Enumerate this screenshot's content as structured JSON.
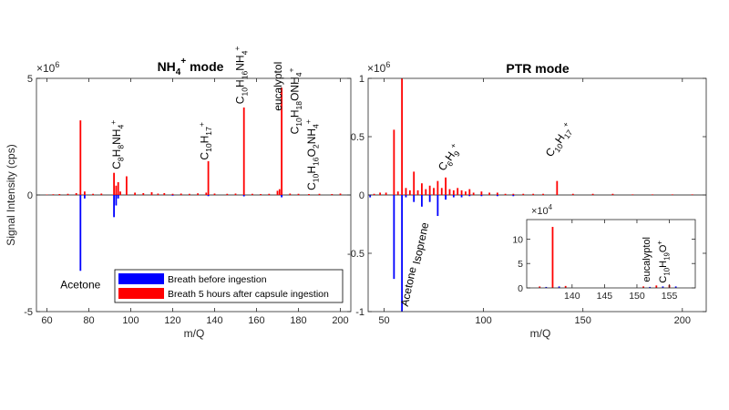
{
  "colors": {
    "before": "#0000ff",
    "after": "#ff0000",
    "axis": "#262626",
    "zero": "#000000"
  },
  "chart_data": [
    {
      "type": "bar",
      "title": "NH4+ mode",
      "xlabel": "m/Q",
      "ylabel": "Signal Intensity (cps)",
      "exponent": "×10^6",
      "xlim": [
        55,
        205
      ],
      "ylim": [
        -5,
        5
      ],
      "xticks": [
        60,
        80,
        100,
        120,
        140,
        160,
        180,
        200
      ],
      "yticks": [
        -5,
        0,
        5
      ],
      "legend": {
        "placement": "bottom-right",
        "entries": [
          "Breath before ingestion",
          "Breath 5 hours after capsule ingestion"
        ]
      },
      "series": [
        {
          "name": "Breath 5 hours after capsule ingestion",
          "x": [
            60,
            63,
            66,
            70,
            74,
            76,
            78,
            82,
            86,
            92,
            93,
            94,
            95,
            98,
            102,
            106,
            110,
            113,
            116,
            120,
            124,
            128,
            132,
            136,
            137,
            140,
            146,
            150,
            154,
            158,
            162,
            166,
            170,
            171,
            172,
            176,
            180,
            185,
            190,
            196,
            200
          ],
          "values": [
            0.02,
            0.03,
            0.04,
            0.05,
            0.08,
            3.2,
            0.15,
            0.05,
            0.06,
            0.95,
            0.4,
            0.55,
            0.15,
            0.8,
            0.1,
            0.08,
            0.12,
            0.06,
            0.08,
            0.05,
            0.06,
            0.05,
            0.07,
            0.1,
            1.45,
            0.06,
            0.05,
            0.06,
            3.75,
            0.05,
            0.04,
            0.05,
            0.18,
            0.25,
            4.6,
            0.06,
            0.05,
            0.04,
            0.05,
            0.04,
            0.06
          ]
        },
        {
          "name": "Breath before ingestion",
          "x": [
            76,
            78,
            92,
            93,
            94,
            120,
            137,
            154,
            172
          ],
          "values": [
            -3.25,
            -0.15,
            -0.95,
            -0.45,
            -0.15,
            -0.03,
            -0.05,
            -0.06,
            -0.1
          ]
        }
      ],
      "annotations": [
        {
          "text": "Acetone",
          "x": 76,
          "y": -4.0,
          "rotate": 0
        },
        {
          "text": "C8H8NH4+",
          "x": 95,
          "y": 1.1,
          "rotate": -90
        },
        {
          "text": "C10H17+",
          "x": 137,
          "y": 1.5,
          "rotate": -90
        },
        {
          "text": "C10H16NH4+",
          "x": 154,
          "y": 3.9,
          "rotate": -90
        },
        {
          "text": "eucalyptol",
          "x": 172,
          "y": 3.6,
          "rotate": -90
        },
        {
          "text": "C10H18ONH4+",
          "x": 180,
          "y": 2.6,
          "rotate": -90
        },
        {
          "text": "C10H16O2NH4+",
          "x": 188,
          "y": 0.2,
          "rotate": -90
        }
      ]
    },
    {
      "type": "bar",
      "title": "PTR mode",
      "xlabel": "m/Q",
      "ylabel": "",
      "exponent": "×10^6",
      "xlim": [
        42,
        212
      ],
      "ylim": [
        -1,
        1
      ],
      "xticks": [
        50,
        100,
        150,
        200
      ],
      "yticks": [
        -1,
        -0.5,
        0,
        0.5,
        1
      ],
      "series": [
        {
          "name": "Breath 5 hours after capsule ingestion",
          "x": [
            45,
            48,
            51,
            55,
            57,
            59,
            61,
            63,
            65,
            67,
            69,
            71,
            73,
            75,
            77,
            79,
            81,
            83,
            85,
            87,
            89,
            91,
            93,
            95,
            99,
            103,
            107,
            111,
            115,
            120,
            125,
            130,
            137,
            145,
            155,
            165,
            175,
            185,
            195,
            205
          ],
          "values": [
            0.01,
            0.02,
            0.02,
            0.56,
            0.03,
            1.0,
            0.06,
            0.04,
            0.2,
            0.04,
            0.1,
            0.05,
            0.08,
            0.06,
            0.12,
            0.06,
            0.15,
            0.05,
            0.04,
            0.06,
            0.04,
            0.03,
            0.05,
            0.02,
            0.03,
            0.02,
            0.02,
            0.01,
            0.01,
            0.01,
            0.01,
            0.01,
            0.12,
            0.01,
            0.01,
            0.01,
            0.005,
            0.005,
            0.005,
            0.005
          ]
        },
        {
          "name": "Breath before ingestion",
          "x": [
            43,
            55,
            59,
            61,
            65,
            69,
            73,
            77,
            81,
            85,
            89,
            93,
            99,
            107,
            115
          ],
          "values": [
            -0.02,
            -0.72,
            -1.0,
            -0.02,
            -0.06,
            -0.1,
            -0.06,
            -0.18,
            -0.04,
            -0.02,
            -0.02,
            -0.01,
            -0.01,
            -0.01,
            -0.01
          ]
        }
      ],
      "annotations": [
        {
          "text": "Isoprene",
          "x": 68,
          "y": -0.6,
          "rotate": -78
        },
        {
          "text": "Acetone",
          "x": 62,
          "y": -0.96,
          "rotate": -78
        },
        {
          "text": "C6H9+",
          "x": 80,
          "y": 0.2,
          "rotate": -55
        },
        {
          "text": "C10H17+",
          "x": 134,
          "y": 0.32,
          "rotate": -55
        }
      ],
      "inset": {
        "exponent": "×10^4",
        "xlim": [
          133,
          159
        ],
        "ylim": [
          0,
          14
        ],
        "xticks": [
          140,
          145,
          150,
          155
        ],
        "yticks": [
          0,
          5,
          10
        ],
        "series": [
          {
            "name": "Breath 5 hours after capsule ingestion",
            "x": [
              135,
              137,
              139,
              151,
              153,
              155
            ],
            "values": [
              0.3,
              12.5,
              0.4,
              0.3,
              0.5,
              0.6
            ]
          },
          {
            "name": "Breath before ingestion",
            "x": [
              136,
              138,
              152,
              154,
              156
            ],
            "values": [
              0.2,
              0.3,
              0.2,
              0.3,
              0.3
            ]
          }
        ],
        "annotations": [
          {
            "text": "eucalyptol",
            "x": 152,
            "y": 1.2,
            "rotate": -90
          },
          {
            "text": "C10H19O+",
            "x": 154.5,
            "y": 1.0,
            "rotate": -90
          }
        ]
      }
    }
  ]
}
